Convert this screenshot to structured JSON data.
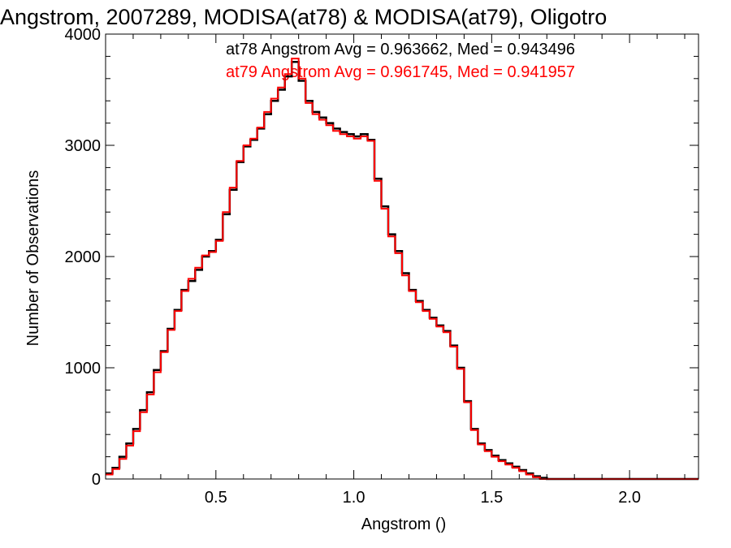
{
  "chart_data": {
    "type": "line",
    "step": true,
    "title": "Angstrom, 2007289, MODISA(at78) & MODISA(at79), Oligotro",
    "xlabel": "Angstrom ()",
    "ylabel": "Number of Observations",
    "xlim": [
      0.1,
      2.25
    ],
    "ylim": [
      0,
      4000
    ],
    "xticks": [
      0.5,
      1.0,
      1.5,
      2.0
    ],
    "xtick_labels": [
      "0.5",
      "1.0",
      "1.5",
      "2.0"
    ],
    "yticks": [
      0,
      1000,
      2000,
      3000,
      4000
    ],
    "ytick_labels": [
      "0",
      "1000",
      "2000",
      "3000",
      "4000"
    ],
    "grid": false,
    "annotations": [
      {
        "text": "at78 Angstrom Avg = 0.963662, Med = 0.943496",
        "color": "#000000"
      },
      {
        "text": "at79 Angstrom Avg = 0.961745, Med = 0.941957",
        "color": "#ff0000"
      }
    ],
    "series": [
      {
        "color": "#000000",
        "x": [
          0.1,
          0.125,
          0.15,
          0.175,
          0.2,
          0.225,
          0.25,
          0.275,
          0.3,
          0.325,
          0.35,
          0.375,
          0.4,
          0.425,
          0.45,
          0.475,
          0.5,
          0.525,
          0.55,
          0.575,
          0.6,
          0.625,
          0.65,
          0.675,
          0.7,
          0.725,
          0.75,
          0.775,
          0.8,
          0.825,
          0.85,
          0.875,
          0.9,
          0.925,
          0.95,
          0.975,
          1.0,
          1.025,
          1.05,
          1.075,
          1.1,
          1.125,
          1.15,
          1.175,
          1.2,
          1.225,
          1.25,
          1.275,
          1.3,
          1.325,
          1.35,
          1.375,
          1.4,
          1.425,
          1.45,
          1.475,
          1.5,
          1.525,
          1.55,
          1.575,
          1.6,
          1.625,
          1.65,
          1.675,
          1.7,
          1.725,
          1.75,
          1.775,
          1.8,
          1.825,
          1.85,
          1.875,
          1.9,
          1.925,
          1.95,
          1.975,
          2.0,
          2.025,
          2.05,
          2.075,
          2.1,
          2.125,
          2.15,
          2.175,
          2.2,
          2.225
        ],
        "y": [
          50,
          100,
          200,
          320,
          450,
          620,
          780,
          980,
          1150,
          1350,
          1520,
          1700,
          1780,
          1880,
          2000,
          2050,
          2150,
          2380,
          2600,
          2850,
          2990,
          3050,
          3150,
          3280,
          3400,
          3500,
          3620,
          3750,
          3580,
          3400,
          3300,
          3250,
          3200,
          3150,
          3120,
          3100,
          3080,
          3100,
          3050,
          2700,
          2450,
          2200,
          2050,
          1850,
          1700,
          1600,
          1520,
          1450,
          1380,
          1330,
          1200,
          1000,
          700,
          450,
          320,
          260,
          210,
          170,
          140,
          110,
          80,
          50,
          25,
          10,
          0,
          0,
          0,
          0,
          0,
          0,
          0,
          0,
          0,
          0,
          0,
          0,
          0,
          0,
          0,
          0,
          0,
          0,
          0,
          0,
          0,
          0
        ]
      },
      {
        "color": "#ff0000",
        "x": [
          0.1,
          0.125,
          0.15,
          0.175,
          0.2,
          0.225,
          0.25,
          0.275,
          0.3,
          0.325,
          0.35,
          0.375,
          0.4,
          0.425,
          0.45,
          0.475,
          0.5,
          0.525,
          0.55,
          0.575,
          0.6,
          0.625,
          0.65,
          0.675,
          0.7,
          0.725,
          0.75,
          0.775,
          0.8,
          0.825,
          0.85,
          0.875,
          0.9,
          0.925,
          0.95,
          0.975,
          1.0,
          1.025,
          1.05,
          1.075,
          1.1,
          1.125,
          1.15,
          1.175,
          1.2,
          1.225,
          1.25,
          1.275,
          1.3,
          1.325,
          1.35,
          1.375,
          1.4,
          1.425,
          1.45,
          1.475,
          1.5,
          1.525,
          1.55,
          1.575,
          1.6,
          1.625,
          1.65,
          1.675,
          1.7,
          1.725,
          1.75,
          1.775,
          1.8,
          1.825,
          1.85,
          1.875,
          1.9,
          1.925,
          1.95,
          1.975,
          2.0,
          2.025,
          2.05,
          2.075,
          2.1,
          2.125,
          2.15,
          2.175,
          2.2,
          2.225
        ],
        "y": [
          40,
          90,
          180,
          300,
          430,
          600,
          760,
          960,
          1140,
          1340,
          1510,
          1690,
          1800,
          1900,
          2010,
          2040,
          2140,
          2400,
          2620,
          2860,
          3000,
          3060,
          3160,
          3300,
          3420,
          3520,
          3640,
          3780,
          3600,
          3380,
          3280,
          3230,
          3180,
          3130,
          3100,
          3080,
          3060,
          3080,
          3040,
          2680,
          2430,
          2180,
          2030,
          1830,
          1690,
          1590,
          1510,
          1440,
          1370,
          1320,
          1190,
          990,
          690,
          440,
          310,
          250,
          200,
          160,
          130,
          100,
          70,
          40,
          15,
          0,
          0,
          0,
          0,
          0,
          0,
          0,
          0,
          0,
          0,
          0,
          0,
          0,
          0,
          0,
          0,
          0,
          0,
          0,
          0,
          0,
          0,
          0
        ]
      }
    ]
  }
}
